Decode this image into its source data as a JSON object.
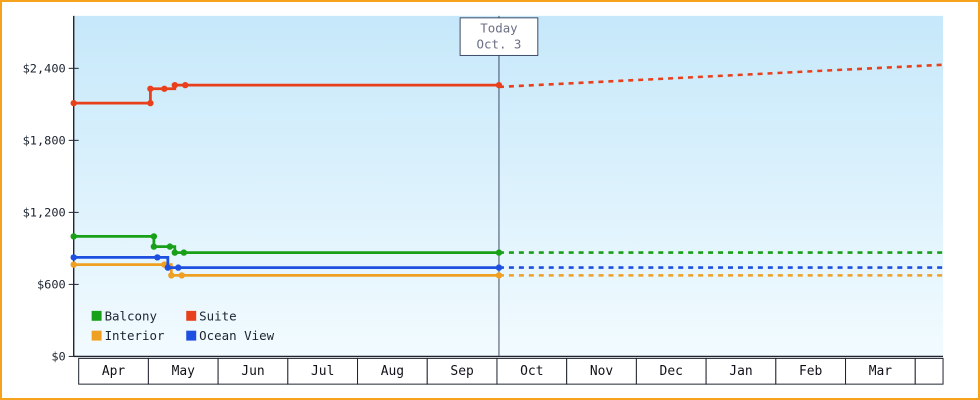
{
  "window": {
    "frame_border_color": "#f6a21d",
    "background": "#ffffff"
  },
  "chart_data": {
    "type": "line",
    "x_axis": {
      "labels": [
        "Apr",
        "May",
        "Jun",
        "Jul",
        "Aug",
        "Sep",
        "Oct",
        "Nov",
        "Dec",
        "Jan",
        "Feb",
        "Mar"
      ],
      "months_visible": 12.47
    },
    "y_axis": {
      "ticks": [
        {
          "label": "$0",
          "value": 0
        },
        {
          "label": "$600",
          "value": 600
        },
        {
          "label": "$1,200",
          "value": 1200
        },
        {
          "label": "$1,800",
          "value": 1800
        },
        {
          "label": "$2,400",
          "value": 2400
        }
      ],
      "max_value": 2840
    },
    "today": {
      "line1": "Today",
      "line2": "Oct. 3",
      "month": 6.1
    },
    "series": [
      {
        "name": "Balcony",
        "color": "#18a018",
        "solid": [
          [
            0,
            1000
          ],
          [
            1.15,
            1000
          ],
          [
            1.15,
            915
          ],
          [
            1.45,
            915
          ],
          [
            1.45,
            865
          ],
          [
            6.1,
            865
          ]
        ],
        "markers": [
          [
            0,
            1000
          ],
          [
            1.15,
            1000
          ],
          [
            1.15,
            915
          ],
          [
            1.38,
            915
          ],
          [
            1.45,
            865
          ],
          [
            1.58,
            865
          ],
          [
            6.1,
            865
          ]
        ],
        "dotted": [
          [
            6.1,
            865
          ],
          [
            12.47,
            865
          ]
        ]
      },
      {
        "name": "Suite",
        "color": "#e8401c",
        "solid": [
          [
            0,
            2110
          ],
          [
            1.1,
            2110
          ],
          [
            1.1,
            2230
          ],
          [
            1.45,
            2230
          ],
          [
            1.45,
            2260
          ],
          [
            6.1,
            2260
          ]
        ],
        "markers": [
          [
            0,
            2110
          ],
          [
            1.1,
            2110
          ],
          [
            1.1,
            2230
          ],
          [
            1.3,
            2230
          ],
          [
            1.45,
            2260
          ],
          [
            1.6,
            2260
          ],
          [
            6.1,
            2260
          ]
        ],
        "dotted": [
          [
            6.1,
            2245
          ],
          [
            12.47,
            2430
          ]
        ]
      },
      {
        "name": "Interior",
        "color": "#efa023",
        "solid": [
          [
            0,
            765
          ],
          [
            1.4,
            765
          ],
          [
            1.4,
            675
          ],
          [
            6.1,
            675
          ]
        ],
        "markers": [
          [
            0,
            765
          ],
          [
            1.3,
            765
          ],
          [
            1.4,
            675
          ],
          [
            1.55,
            675
          ],
          [
            6.1,
            675
          ]
        ],
        "dotted": [
          [
            6.1,
            675
          ],
          [
            12.47,
            675
          ]
        ]
      },
      {
        "name": "Ocean View",
        "color": "#1d50e0",
        "solid": [
          [
            0,
            825
          ],
          [
            1.35,
            825
          ],
          [
            1.35,
            740
          ],
          [
            6.1,
            740
          ]
        ],
        "markers": [
          [
            0,
            825
          ],
          [
            1.2,
            825
          ],
          [
            1.35,
            740
          ],
          [
            1.5,
            740
          ],
          [
            6.1,
            740
          ]
        ],
        "dotted": [
          [
            6.1,
            740
          ],
          [
            12.47,
            740
          ]
        ]
      }
    ],
    "legend_rows": [
      [
        {
          "label": "Balcony",
          "color": "#18a018"
        },
        {
          "label": "Suite",
          "color": "#e8401c"
        }
      ],
      [
        {
          "label": "Interior",
          "color": "#efa023"
        },
        {
          "label": "Ocean View",
          "color": "#1d50e0"
        }
      ]
    ],
    "colors": {
      "plot_gradient_top": "#c6e8fa",
      "plot_gradient_bottom": "#f2fbff",
      "axis": "#1f2430",
      "tick_text": "#1c2430",
      "month_text": "#101018",
      "month_cell_bg": "#ffffff",
      "month_cell_border": "#1f2430",
      "today_line": "#3d4a66",
      "today_box_border": "#3d4a66",
      "today_box_bg": "#ffffff",
      "today_text": "#6b6f82",
      "legend_text": "#1c2430"
    }
  }
}
